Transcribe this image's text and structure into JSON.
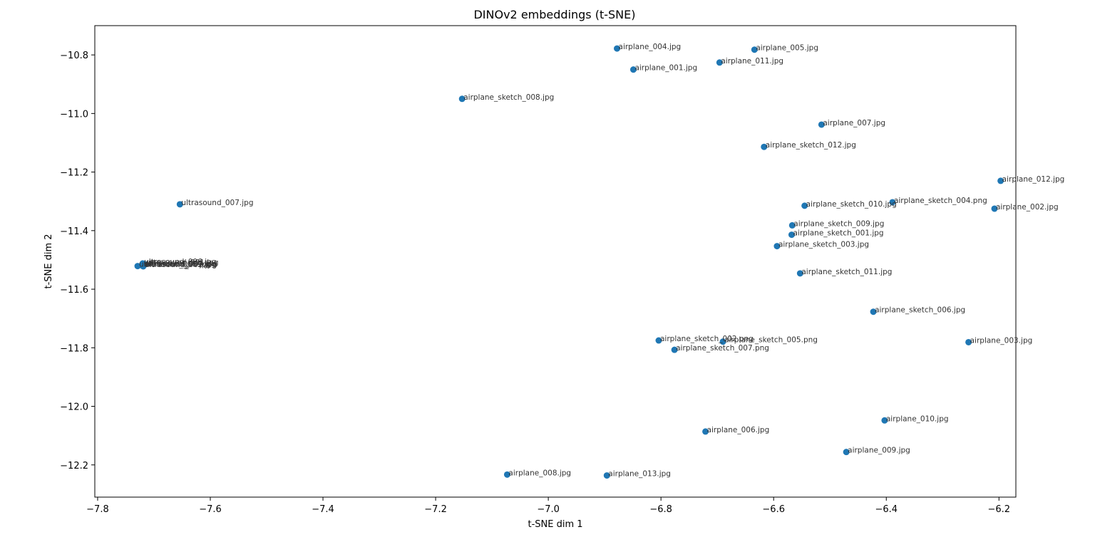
{
  "chart_data": {
    "type": "scatter",
    "title": "DINOv2 embeddings (t-SNE)",
    "xlabel": "t-SNE dim 1",
    "ylabel": "t-SNE dim 2",
    "xlim": [
      -7.805,
      -6.17
    ],
    "ylim": [
      -12.31,
      -10.7
    ],
    "xticks": [
      -7.8,
      -7.6,
      -7.4,
      -7.2,
      -7.0,
      -6.8,
      -6.6,
      -6.4,
      -6.2
    ],
    "yticks": [
      -10.8,
      -11.0,
      -11.2,
      -11.4,
      -11.6,
      -11.8,
      -12.0,
      -12.2
    ],
    "grid": false,
    "marker_color": "#1f77b4",
    "points": [
      {
        "x": -6.878,
        "y": -10.778,
        "label": "airplane_004.jpg"
      },
      {
        "x": -6.634,
        "y": -10.782,
        "label": "airplane_005.jpg"
      },
      {
        "x": -6.696,
        "y": -10.826,
        "label": "airplane_011.jpg"
      },
      {
        "x": -6.849,
        "y": -10.85,
        "label": "airplane_001.jpg"
      },
      {
        "x": -7.153,
        "y": -10.95,
        "label": "airplane_sketch_008.jpg"
      },
      {
        "x": -6.515,
        "y": -11.038,
        "label": "airplane_007.jpg"
      },
      {
        "x": -6.617,
        "y": -11.114,
        "label": "airplane_sketch_012.jpg"
      },
      {
        "x": -6.197,
        "y": -11.23,
        "label": "airplane_012.jpg"
      },
      {
        "x": -7.654,
        "y": -11.31,
        "label": "ultrasound_007.jpg"
      },
      {
        "x": -6.389,
        "y": -11.303,
        "label": "airplane_sketch_004.png"
      },
      {
        "x": -6.545,
        "y": -11.315,
        "label": "airplane_sketch_010.jpg"
      },
      {
        "x": -6.208,
        "y": -11.325,
        "label": "airplane_002.jpg"
      },
      {
        "x": -6.567,
        "y": -11.382,
        "label": "airplane_sketch_009.jpg"
      },
      {
        "x": -6.568,
        "y": -11.414,
        "label": "airplane_sketch_001.jpg"
      },
      {
        "x": -6.594,
        "y": -11.453,
        "label": "airplane_sketch_003.jpg"
      },
      {
        "x": -7.72,
        "y": -11.512,
        "label": "ultrasound_006.jpg"
      },
      {
        "x": -7.716,
        "y": -11.515,
        "label": "ultrasound_001.jpg"
      },
      {
        "x": -7.718,
        "y": -11.518,
        "label": "ultrasound_003.jpg"
      },
      {
        "x": -7.721,
        "y": -11.519,
        "label": "ultrasound_004.jpg"
      },
      {
        "x": -7.729,
        "y": -11.521,
        "label": "ultrasound_005.jpg"
      },
      {
        "x": -7.719,
        "y": -11.522,
        "label": "ultrasound_002.jpg"
      },
      {
        "x": -6.553,
        "y": -11.546,
        "label": "airplane_sketch_011.jpg"
      },
      {
        "x": -6.423,
        "y": -11.677,
        "label": "airplane_sketch_006.jpg"
      },
      {
        "x": -6.804,
        "y": -11.775,
        "label": "airplane_sketch_002.png"
      },
      {
        "x": -6.69,
        "y": -11.779,
        "label": "airplane_sketch_005.png"
      },
      {
        "x": -6.254,
        "y": -11.781,
        "label": "airplane_003.jpg"
      },
      {
        "x": -6.776,
        "y": -11.807,
        "label": "airplane_sketch_007.png"
      },
      {
        "x": -6.403,
        "y": -12.048,
        "label": "airplane_010.jpg"
      },
      {
        "x": -6.721,
        "y": -12.086,
        "label": "airplane_006.jpg"
      },
      {
        "x": -6.471,
        "y": -12.156,
        "label": "airplane_009.jpg"
      },
      {
        "x": -7.073,
        "y": -12.233,
        "label": "airplane_008.jpg"
      },
      {
        "x": -6.896,
        "y": -12.236,
        "label": "airplane_013.jpg"
      }
    ]
  }
}
